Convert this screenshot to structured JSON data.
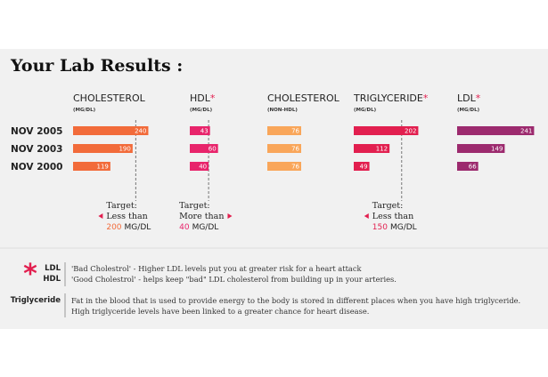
{
  "title": "Your Lab Results :",
  "chart_data": [
    {
      "type": "bar",
      "title": "CHOLESTEROL",
      "subtitle": "(MG/DL)",
      "color": "#f26b3a",
      "categories": [
        "NOV 2005",
        "NOV 2003",
        "NOV 2000"
      ],
      "values": [
        240,
        190,
        119
      ],
      "xlim": [
        0,
        270
      ],
      "target": {
        "label": "Target:",
        "text": "Less than",
        "value": 200,
        "unit": "MG/DL",
        "arrow": "left"
      }
    },
    {
      "type": "bar",
      "title": "HDL",
      "mark": "*",
      "subtitle": "(MG/DL)",
      "color": "#e8246b",
      "values": [
        43,
        60,
        40
      ],
      "xlim": [
        0,
        180
      ],
      "target": {
        "label": "Target:",
        "text": "More than",
        "value": 40,
        "unit": "MG/DL",
        "arrow": "right"
      }
    },
    {
      "type": "bar",
      "title": "CHOLESTEROL",
      "subtitle": "(NON-HDL)",
      "color": "#f9a65a",
      "values": [
        76,
        76,
        76
      ],
      "xlim": [
        0,
        190
      ]
    },
    {
      "type": "bar",
      "title": "TRIGLYCERIDE",
      "mark": "*",
      "subtitle": "(MG/DL)",
      "color": "#e21f4f",
      "values": [
        202,
        112,
        49
      ],
      "xlim": [
        0,
        265
      ],
      "target": {
        "label": "Target:",
        "text": "Less than",
        "value": 150,
        "unit": "MG/DL",
        "arrow": "left"
      }
    },
    {
      "type": "bar",
      "title": "LDL",
      "mark": "*",
      "subtitle": "(MG/DL)",
      "color": "#9c2a6e",
      "values": [
        241,
        149,
        66
      ],
      "xlim": [
        0,
        265
      ]
    }
  ],
  "notes": [
    {
      "term": "LDL",
      "text": "'Bad Cholestrol' - Higher LDL levels put you at greater risk for a heart attack"
    },
    {
      "term": "HDL",
      "text": "'Good Cholestrol' - helps keep \"bad\" LDL cholesterol from building up in your arteries."
    },
    {
      "term": "Triglyceride",
      "text": "Fat in the blood that is used to provide energy to the body is stored in different places when you have high triglyceride. High triglyceride levels have been linked to a greater chance for heart disease."
    }
  ]
}
